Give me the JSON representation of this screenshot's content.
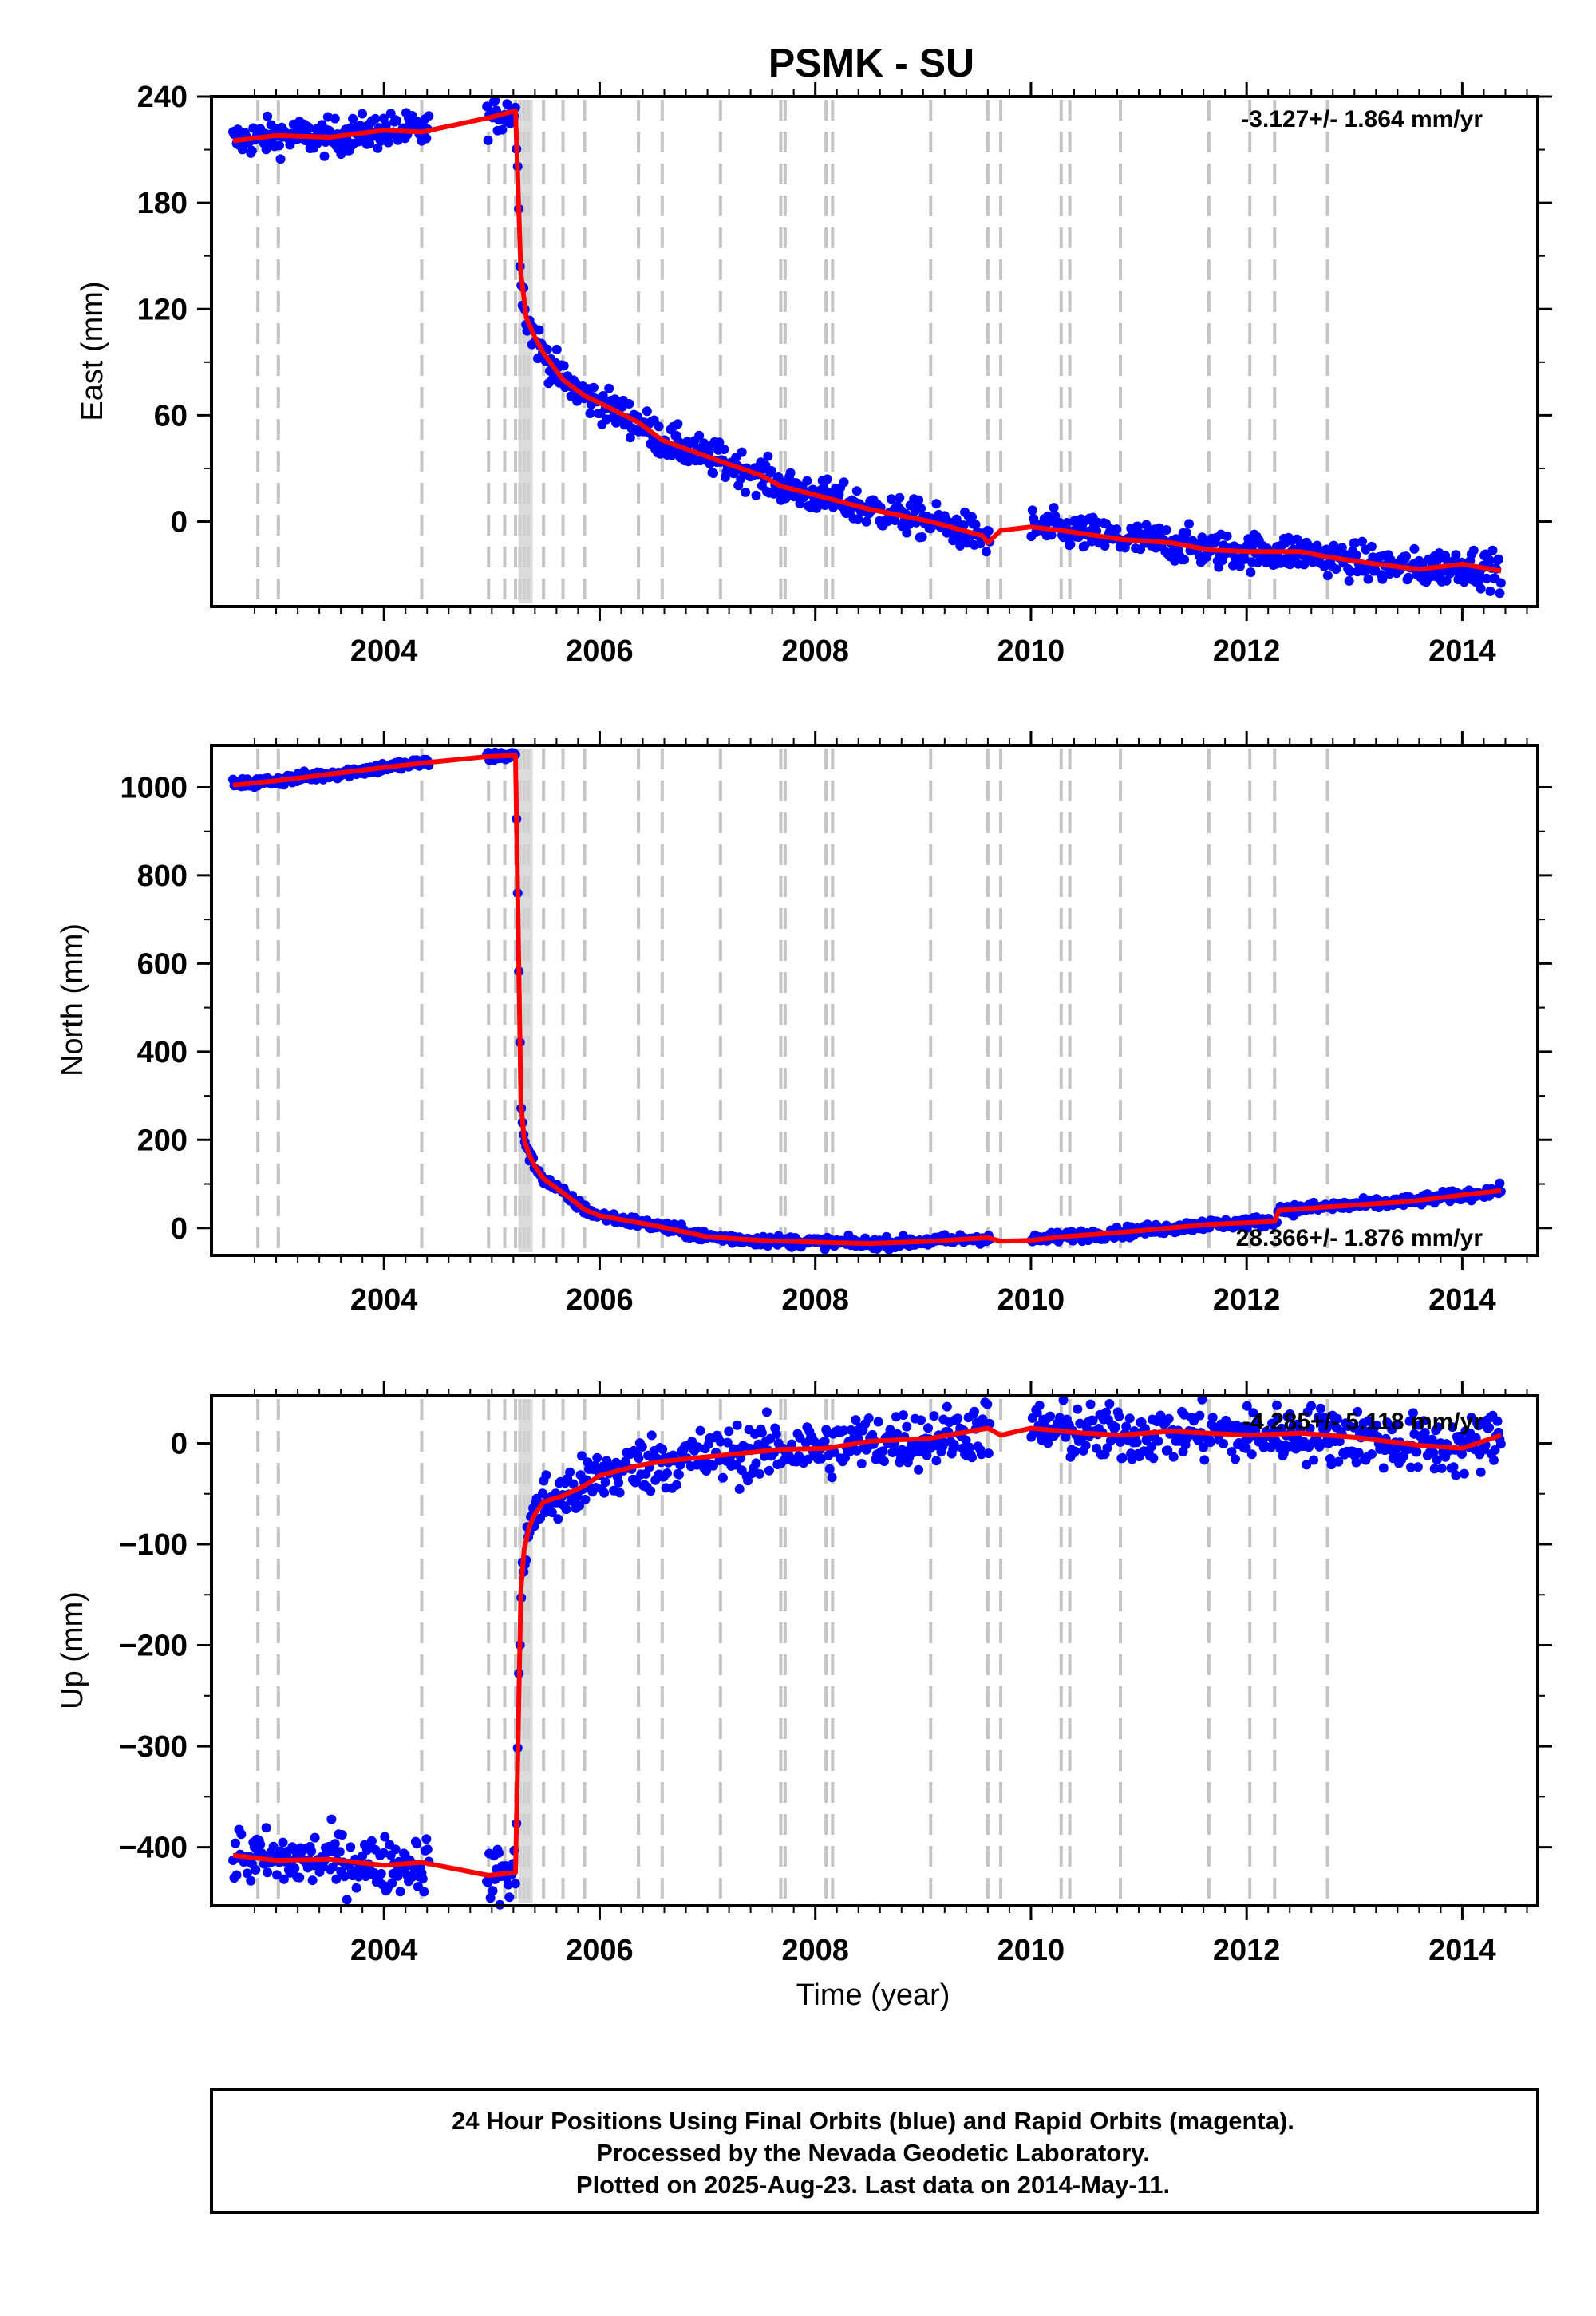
{
  "chart_data": {
    "type": "scatter",
    "title": "PSMK - SU",
    "xlabel": "Time (year)",
    "xlim": [
      2002.4,
      2014.7
    ],
    "x_ticks": [
      2004,
      2006,
      2008,
      2010,
      2012,
      2014
    ],
    "x_tick_labels": [
      "2004",
      "2006",
      "2008",
      "2010",
      "2012",
      "2014"
    ],
    "data_range": [
      2002.6,
      2014.36
    ],
    "step_epochs": [
      2002.83,
      2003.02,
      2004.35,
      2004.97,
      2005.12,
      2005.22,
      2005.26,
      2005.3,
      2005.34,
      2005.48,
      2005.66,
      2005.86,
      2006.36,
      2006.58,
      2007.12,
      2007.68,
      2007.72,
      2008.1,
      2008.16,
      2009.07,
      2009.6,
      2009.72,
      2010.28,
      2010.36,
      2010.83,
      2011.65,
      2012.03,
      2012.26,
      2012.75
    ],
    "panels": [
      {
        "id": "east",
        "ylabel": "East (mm)",
        "ylim": [
          -48,
          240
        ],
        "y_ticks": [
          240,
          180,
          120,
          60,
          0
        ],
        "y_tick_labels": [
          "240",
          "180",
          "120",
          "60",
          "0"
        ],
        "rate_label": "-3.127+/- 1.864 mm/yr",
        "scatter": 5,
        "series": [
          {
            "name": "24 Hour Positions Using Final Orbits",
            "color": "#0000ff",
            "x": [
              2002.6,
              2003.0,
              2003.5,
              2004.0,
              2004.35,
              2004.97,
              2005.22,
              2005.27,
              2005.32,
              2005.4,
              2005.48,
              2005.66,
              2005.86,
              2006.0,
              2006.36,
              2006.58,
              2007.12,
              2007.5,
              2007.68,
              2008.0,
              2008.5,
              2009.07,
              2009.55,
              2009.6,
              2009.72,
              2010.0,
              2010.28,
              2010.5,
              2010.83,
              2011.3,
              2011.65,
              2012.03,
              2012.5,
              2012.75,
              2013.2,
              2013.6,
              2014.0,
              2014.36
            ],
            "y": [
              215,
              218,
              217,
              221,
              220,
              228,
              232,
              140,
              115,
              104,
              95,
              80,
              71,
              67,
              56,
              46,
              34,
              26,
              20,
              15,
              7,
              0,
              -8,
              -12,
              -5,
              -3,
              -5,
              -7,
              -10,
              -12,
              -16,
              -17,
              -17,
              -20,
              -24,
              -27,
              -24,
              -28
            ]
          }
        ]
      },
      {
        "id": "north",
        "ylabel": "North (mm)",
        "ylim": [
          -62,
          1095
        ],
        "y_ticks": [
          1000,
          800,
          600,
          400,
          200,
          0
        ],
        "y_tick_labels": [
          "1000",
          "800",
          "600",
          "400",
          "200",
          "0"
        ],
        "rate_label": "28.366+/- 1.876 mm/yr",
        "scatter": 6,
        "series": [
          {
            "name": "24 Hour Positions Using Final Orbits",
            "color": "#0000ff",
            "x": [
              2002.6,
              2003.0,
              2003.5,
              2004.0,
              2004.35,
              2004.97,
              2005.22,
              2005.27,
              2005.3,
              2005.35,
              2005.4,
              2005.48,
              2005.66,
              2005.86,
              2006.0,
              2006.36,
              2006.58,
              2007.0,
              2007.5,
              2008.0,
              2008.5,
              2009.07,
              2009.6,
              2009.72,
              2010.0,
              2010.28,
              2010.83,
              2011.65,
              2012.26,
              2012.3,
              2013.0,
              2013.5,
              2014.0,
              2014.36
            ],
            "y": [
              1005,
              1015,
              1030,
              1045,
              1055,
              1070,
              1072,
              285,
              200,
              165,
              140,
              112,
              80,
              42,
              28,
              12,
              2,
              -20,
              -28,
              -32,
              -35,
              -30,
              -22,
              -30,
              -28,
              -20,
              -10,
              8,
              15,
              40,
              52,
              60,
              75,
              85
            ]
          }
        ]
      },
      {
        "id": "up",
        "ylabel": "Up (mm)",
        "ylim": [
          -458,
          47
        ],
        "y_ticks": [
          0,
          -100,
          -200,
          -300,
          -400
        ],
        "y_tick_labels": [
          "0",
          "−100",
          "−200",
          "−300",
          "−400"
        ],
        "rate_label": "-4.285+/- 5.118 mm/yr",
        "scatter": 14,
        "series": [
          {
            "name": "24 Hour Positions Using Final Orbits",
            "color": "#0000ff",
            "x": [
              2002.6,
              2003.0,
              2003.5,
              2004.0,
              2004.35,
              2004.97,
              2005.22,
              2005.27,
              2005.3,
              2005.35,
              2005.4,
              2005.48,
              2005.66,
              2005.86,
              2006.0,
              2006.36,
              2006.58,
              2007.12,
              2007.68,
              2008.1,
              2008.5,
              2009.07,
              2009.6,
              2009.72,
              2010.0,
              2010.5,
              2010.83,
              2011.3,
              2011.65,
              2012.03,
              2012.5,
              2013.0,
              2013.6,
              2014.0,
              2014.36
            ],
            "y": [
              -408,
              -413,
              -412,
              -418,
              -415,
              -428,
              -425,
              -145,
              -105,
              -82,
              -70,
              -58,
              -52,
              -42,
              -32,
              -22,
              -18,
              -12,
              -6,
              -5,
              2,
              5,
              15,
              8,
              15,
              10,
              8,
              12,
              10,
              8,
              10,
              6,
              -2,
              -5,
              8
            ]
          }
        ]
      }
    ],
    "model_color": "#ff0000"
  },
  "footer": {
    "line1": "24 Hour Positions Using Final Orbits (blue) and Rapid Orbits (magenta).",
    "line2": "Processed by the Nevada Geodetic Laboratory.",
    "line3": "Plotted on 2025-Aug-23. Last data on 2014-May-11."
  }
}
